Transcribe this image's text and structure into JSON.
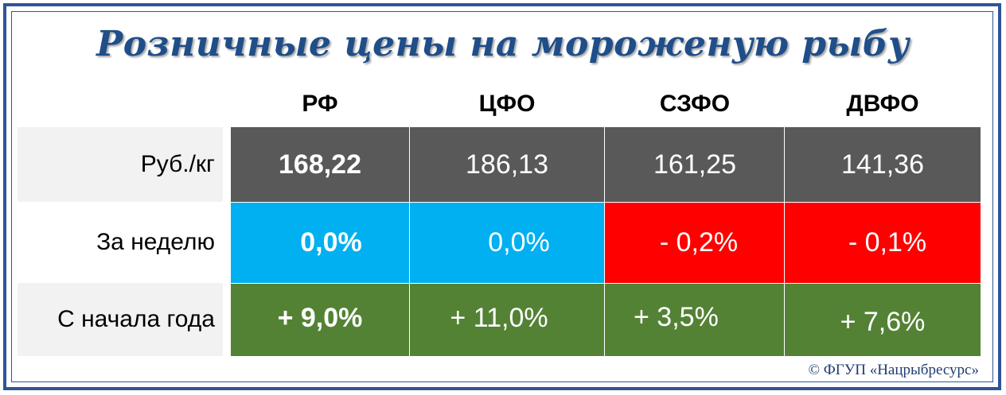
{
  "title": "Розничные цены на мороженую рыбу",
  "chart_data": {
    "type": "table",
    "title": "Розничные цены на мороженую рыбу",
    "columns": [
      "РФ",
      "ЦФО",
      "СЗФО",
      "ДВФО"
    ],
    "rows": [
      {
        "label": "Руб./кг",
        "values": [
          "168,22",
          "186,13",
          "161,25",
          "141,36"
        ]
      },
      {
        "label": "За неделю",
        "values": [
          "0,0%",
          "0,0%",
          "- 0,2%",
          "- 0,1%"
        ]
      },
      {
        "label": "С начала года",
        "values": [
          "+ 9,0%",
          "+ 11,0%",
          "+ 3,5%",
          "+ 7,6%"
        ]
      }
    ]
  },
  "colors": {
    "frame": "#2f5597",
    "title": "#1f4e89",
    "price_row": "#595959",
    "week_row_positive": "#00b0f0",
    "week_row_negative": "#ff0000",
    "year_row": "#548235"
  },
  "copyright": "© ФГУП «Нацрыбресурс»"
}
